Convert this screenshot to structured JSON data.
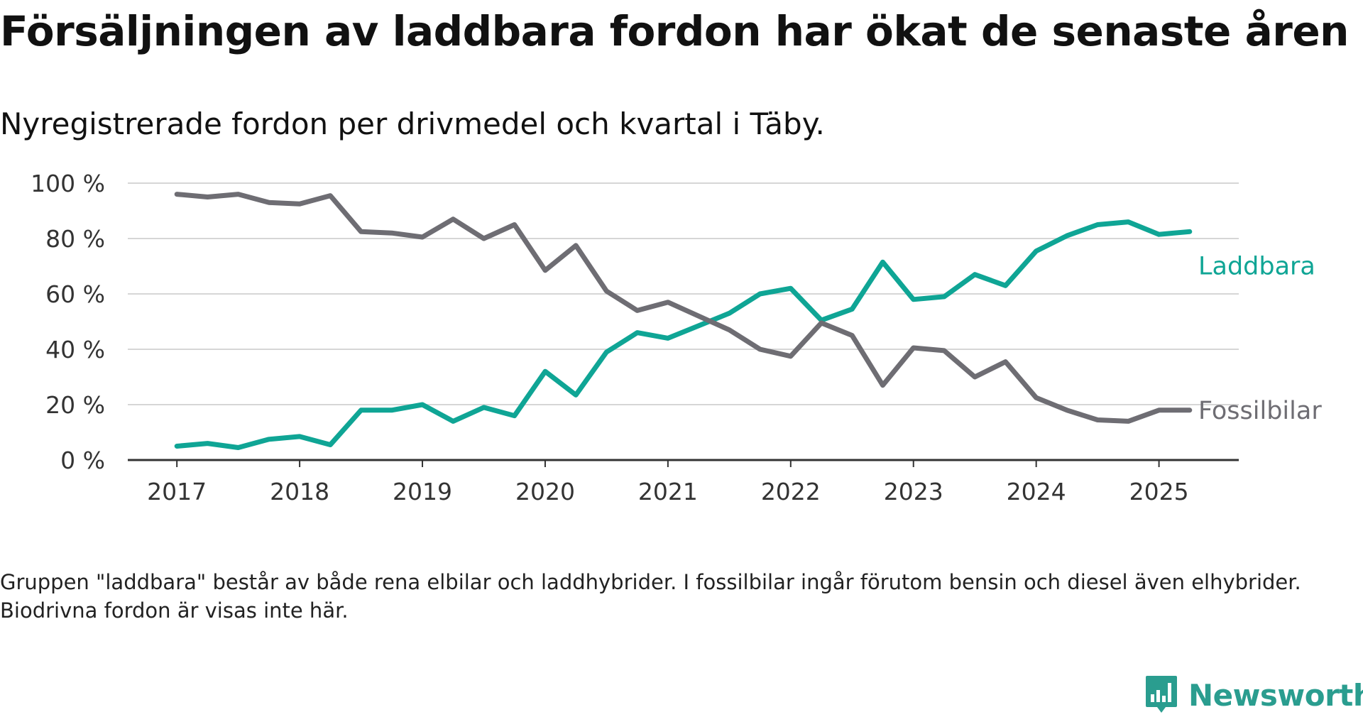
{
  "title": "Försäljningen av laddbara fordon har ökat de senaste åren",
  "subtitle": "Nyregistrerade fordon per drivmedel och kvartal i Täby.",
  "note": "Gruppen \"laddbara\" består av både rena elbilar och laddhybrider. I fossilbilar ingår förutom bensin och diesel även elhybrider. Biodrivna fordon är visas inte här.",
  "logo": {
    "text": "Newsworthy",
    "icon": "newsworthy-logo-icon",
    "color": "#2a9d8f"
  },
  "chart_data": {
    "type": "line",
    "title": "Försäljningen av laddbara fordon har ökat de senaste åren",
    "subtitle": "Nyregistrerade fordon per drivmedel och kvartal i Täby.",
    "xlabel": "",
    "ylabel": "",
    "x": [
      2017.0,
      2017.25,
      2017.5,
      2017.75,
      2018.0,
      2018.25,
      2018.5,
      2018.75,
      2019.0,
      2019.25,
      2019.5,
      2019.75,
      2020.0,
      2020.25,
      2020.5,
      2020.75,
      2021.0,
      2021.25,
      2021.5,
      2021.75,
      2022.0,
      2022.25,
      2022.5,
      2022.75,
      2023.0,
      2023.25,
      2023.5,
      2023.75,
      2024.0,
      2024.25,
      2024.5,
      2024.75,
      2025.0,
      2025.25
    ],
    "x_ticks": [
      "2017",
      "2018",
      "2019",
      "2020",
      "2021",
      "2022",
      "2023",
      "2024",
      "2025"
    ],
    "xlim": [
      2016.6,
      2025.65
    ],
    "y_ticks": [
      "0 %",
      "20 %",
      "40 %",
      "60 %",
      "80 %",
      "100 %"
    ],
    "ylim": [
      0,
      100
    ],
    "grid": true,
    "legend": "direct labels at line ends",
    "series": [
      {
        "name": "Laddbara",
        "color": "#0fa595",
        "values": [
          5,
          6,
          4.5,
          7.5,
          8.5,
          5.5,
          18,
          18,
          20,
          14,
          19,
          16,
          32,
          23.5,
          39,
          46,
          44,
          48.5,
          53,
          60,
          62,
          50.5,
          54.5,
          71.5,
          58,
          59,
          67,
          63,
          75.5,
          81,
          85,
          86,
          81.5,
          82.5
        ]
      },
      {
        "name": "Fossilbilar",
        "color": "#6e6d73",
        "values": [
          96,
          95,
          96,
          93,
          92.5,
          95.5,
          82.5,
          82,
          80.5,
          87,
          80,
          85,
          68.5,
          77.5,
          61,
          54,
          57,
          52,
          47,
          40,
          37.5,
          49.5,
          45,
          27,
          40.5,
          39.5,
          30,
          35.5,
          22.5,
          18,
          14.5,
          14,
          18,
          18
        ]
      }
    ]
  }
}
